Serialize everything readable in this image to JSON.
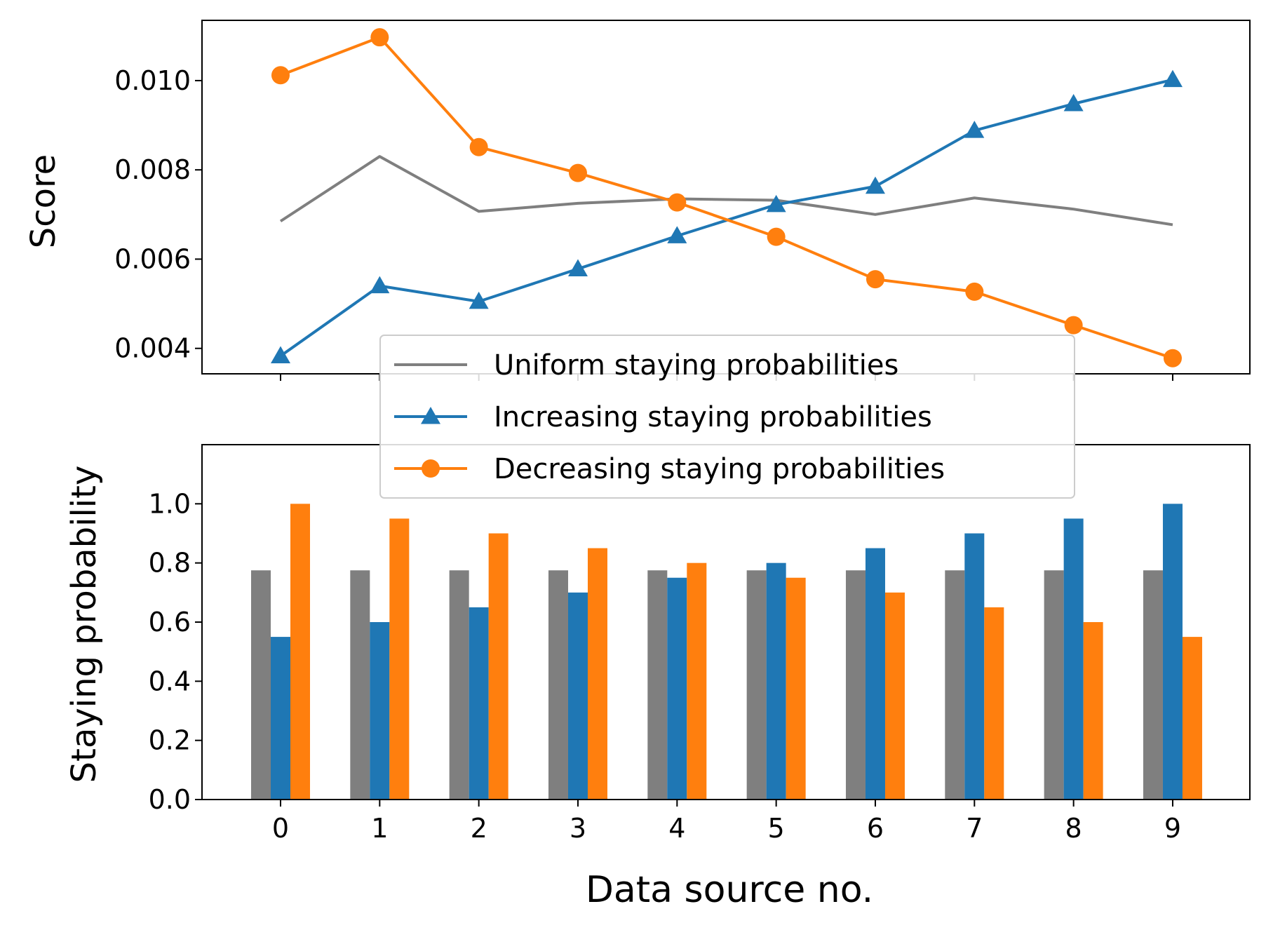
{
  "chart_data": [
    {
      "type": "line",
      "ylabel": "Score",
      "xlabel": "",
      "x": [
        0,
        1,
        2,
        3,
        4,
        5,
        6,
        7,
        8,
        9
      ],
      "xticks": [
        "",
        "",
        "",
        "",
        "",
        "",
        "",
        "",
        "",
        ""
      ],
      "ylim": [
        0.00343,
        0.01135
      ],
      "yticks": [
        "0.004",
        "0.006",
        "0.008",
        "0.010"
      ],
      "yticks_values": [
        0.004,
        0.006,
        0.008,
        0.01
      ],
      "grid": false,
      "legend_position": "lower-center",
      "series": [
        {
          "name": "Uniform staying probabilities",
          "color": "#7f7f7f",
          "marker": "none",
          "values": [
            0.00685,
            0.0083,
            0.00707,
            0.00725,
            0.00735,
            0.00732,
            0.007,
            0.00737,
            0.00712,
            0.00677
          ]
        },
        {
          "name": "Increasing staying probabilities",
          "color": "#1f77b4",
          "marker": "triangle",
          "values": [
            0.00383,
            0.0054,
            0.00505,
            0.00578,
            0.00652,
            0.00722,
            0.00763,
            0.00888,
            0.00948,
            0.01002
          ]
        },
        {
          "name": "Decreasing staying probabilities",
          "color": "#ff7f0e",
          "marker": "circle",
          "values": [
            0.01012,
            0.01097,
            0.00851,
            0.00793,
            0.00727,
            0.0065,
            0.00555,
            0.00527,
            0.00452,
            0.00378
          ]
        }
      ]
    },
    {
      "type": "bar",
      "ylabel": "Staying probability",
      "xlabel": "Data source no.",
      "categories": [
        "0",
        "1",
        "2",
        "3",
        "4",
        "5",
        "6",
        "7",
        "8",
        "9"
      ],
      "ylim": [
        0,
        1.2
      ],
      "yticks": [
        "0.0",
        "0.2",
        "0.4",
        "0.6",
        "0.8",
        "1.0"
      ],
      "yticks_values": [
        0,
        0.2,
        0.4,
        0.6,
        0.8,
        1.0
      ],
      "grid": false,
      "series": [
        {
          "name": "Uniform staying probabilities",
          "color": "#7f7f7f",
          "values": [
            0.775,
            0.775,
            0.775,
            0.775,
            0.775,
            0.775,
            0.775,
            0.775,
            0.775,
            0.775
          ]
        },
        {
          "name": "Increasing staying probabilities",
          "color": "#1f77b4",
          "values": [
            0.55,
            0.6,
            0.65,
            0.7,
            0.75,
            0.8,
            0.85,
            0.9,
            0.95,
            1.0
          ]
        },
        {
          "name": "Decreasing staying probabilities",
          "color": "#ff7f0e",
          "values": [
            1.0,
            0.95,
            0.9,
            0.85,
            0.8,
            0.75,
            0.7,
            0.65,
            0.6,
            0.55
          ]
        }
      ]
    }
  ]
}
